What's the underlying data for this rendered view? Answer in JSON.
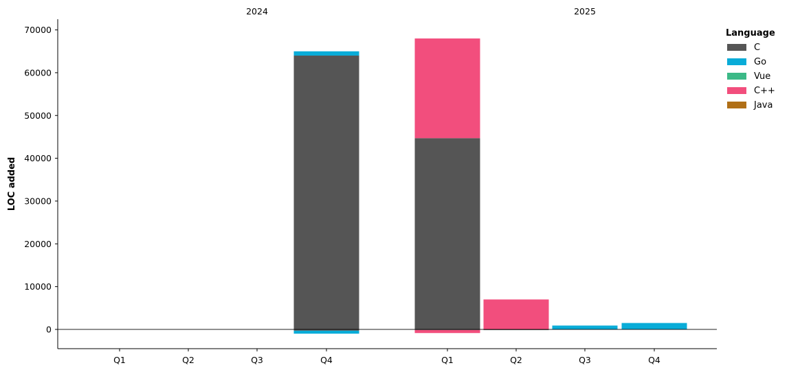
{
  "chart_data": {
    "type": "bar",
    "stacked": true,
    "ylabel": "LOC added",
    "xlabel": "",
    "ylim": [
      -4500,
      72500
    ],
    "yticks": [
      0,
      10000,
      20000,
      30000,
      40000,
      50000,
      60000,
      70000
    ],
    "grid": false,
    "legend_title": "Language",
    "legend_position": "right",
    "groups": [
      {
        "label": "2024",
        "categories": [
          "Q1",
          "Q2",
          "Q3",
          "Q4"
        ]
      },
      {
        "label": "2025",
        "categories": [
          "Q1",
          "Q2",
          "Q3",
          "Q4"
        ]
      }
    ],
    "series": [
      {
        "name": "C",
        "color": "#555555",
        "values": [
          0,
          0,
          0,
          64000,
          44700,
          0,
          0,
          0
        ]
      },
      {
        "name": "Go",
        "color": "#09acd8",
        "values": [
          0,
          0,
          0,
          1000,
          0,
          0,
          900,
          1500
        ]
      },
      {
        "name": "Vue",
        "color": "#3cb987",
        "values": [
          0,
          0,
          0,
          0,
          0,
          0,
          0,
          0
        ]
      },
      {
        "name": "C++",
        "color": "#f24e7d",
        "values": [
          0,
          0,
          0,
          0,
          23300,
          7000,
          0,
          0
        ]
      },
      {
        "name": "Java",
        "color": "#b06f16",
        "values": [
          0,
          0,
          0,
          0,
          0,
          0,
          0,
          0
        ]
      }
    ],
    "negative_series": [
      {
        "name": "C",
        "color": "#555555",
        "values": [
          0,
          0,
          0,
          -300,
          -150,
          -150,
          0,
          0
        ]
      },
      {
        "name": "Go",
        "color": "#09acd8",
        "values": [
          0,
          0,
          0,
          -700,
          0,
          0,
          0,
          0
        ]
      },
      {
        "name": "C++",
        "color": "#f24e7d",
        "values": [
          0,
          0,
          0,
          0,
          -700,
          0,
          0,
          0
        ]
      }
    ]
  }
}
